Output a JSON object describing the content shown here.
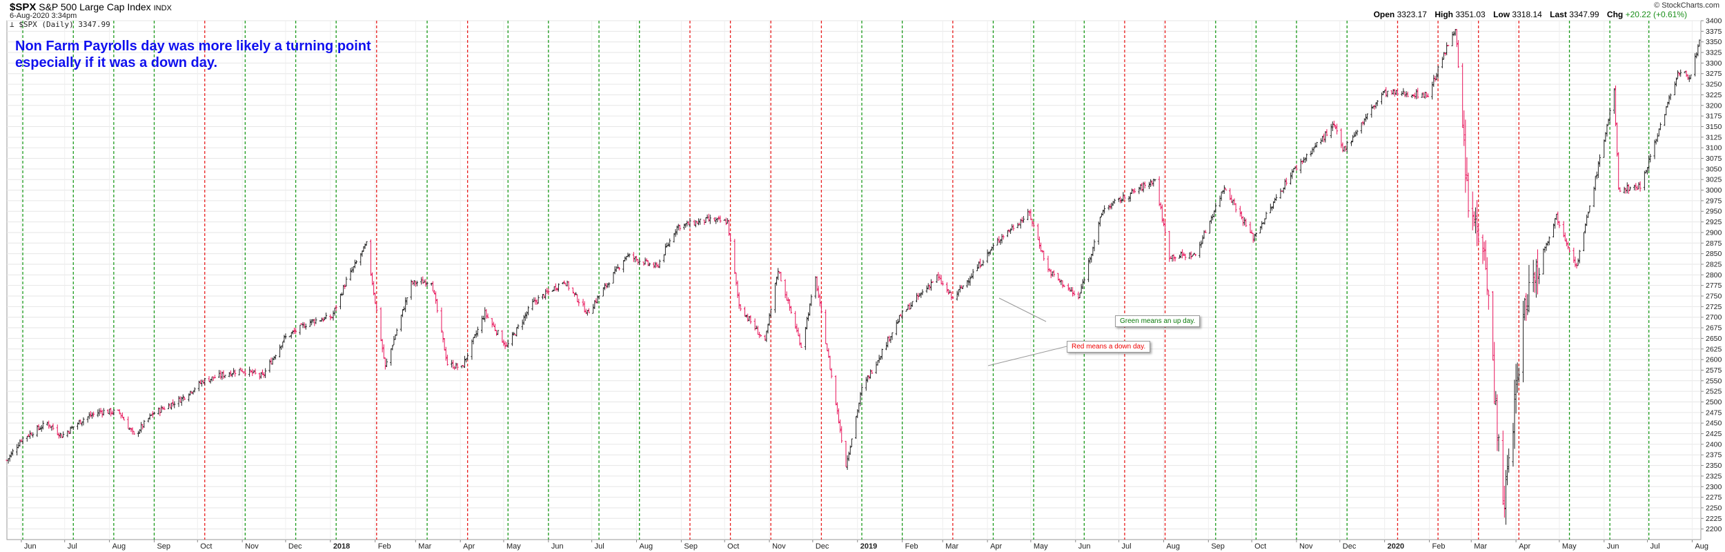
{
  "header": {
    "symbol": "$SPX",
    "name": "S&P 500 Large Cap Index",
    "exchange": "INDX",
    "datetime": "6-Aug-2020 3:34pm",
    "legend": "$SPX (Daily) 3347.99",
    "open_label": "Open",
    "open": "3323.17",
    "high_label": "High",
    "high": "3351.03",
    "low_label": "Low",
    "low": "3318.14",
    "last_label": "Last",
    "last": "3347.99",
    "chg_label": "Chg",
    "chg": "+20.22 (+0.61%)",
    "brand": "© StockCharts.com"
  },
  "annotations": {
    "headline_line1": "Non Farm Payrolls day was more likely a turning point",
    "headline_line2": "especially if it was a down day.",
    "green_note": "Green means an up day.",
    "red_note": "Red means a down day."
  },
  "colors": {
    "up_line": "#1a9a1a",
    "down_line": "#e81c1c",
    "up_bar": "#222222",
    "down_bar": "#e8145a"
  },
  "chart_data": {
    "type": "bar",
    "subtype": "ohlc-price-chart",
    "series_name": "$SPX (Daily)",
    "ylim": [
      2175,
      3400
    ],
    "y_ticks": [
      2200,
      2225,
      2250,
      2275,
      2300,
      2325,
      2350,
      2375,
      2400,
      2425,
      2450,
      2475,
      2500,
      2525,
      2550,
      2575,
      2600,
      2625,
      2650,
      2675,
      2700,
      2725,
      2750,
      2775,
      2800,
      2825,
      2850,
      2875,
      2900,
      2925,
      2950,
      2975,
      3000,
      3025,
      3050,
      3075,
      3100,
      3125,
      3150,
      3175,
      3200,
      3225,
      3250,
      3275,
      3300,
      3325,
      3350,
      3375,
      3400
    ],
    "x_labels": [
      {
        "label": "Jun",
        "date": "2017-06-01",
        "bold": false
      },
      {
        "label": "Jul",
        "date": "2017-07-01",
        "bold": false
      },
      {
        "label": "Aug",
        "date": "2017-08-01",
        "bold": false
      },
      {
        "label": "Sep",
        "date": "2017-09-01",
        "bold": false
      },
      {
        "label": "Oct",
        "date": "2017-10-01",
        "bold": false
      },
      {
        "label": "Nov",
        "date": "2017-11-01",
        "bold": false
      },
      {
        "label": "Dec",
        "date": "2017-12-01",
        "bold": false
      },
      {
        "label": "2018",
        "date": "2018-01-01",
        "bold": true
      },
      {
        "label": "Feb",
        "date": "2018-02-01",
        "bold": false
      },
      {
        "label": "Mar",
        "date": "2018-03-01",
        "bold": false
      },
      {
        "label": "Apr",
        "date": "2018-04-01",
        "bold": false
      },
      {
        "label": "May",
        "date": "2018-05-01",
        "bold": false
      },
      {
        "label": "Jun",
        "date": "2018-06-01",
        "bold": false
      },
      {
        "label": "Jul",
        "date": "2018-07-01",
        "bold": false
      },
      {
        "label": "Aug",
        "date": "2018-08-01",
        "bold": false
      },
      {
        "label": "Sep",
        "date": "2018-09-01",
        "bold": false
      },
      {
        "label": "Oct",
        "date": "2018-10-01",
        "bold": false
      },
      {
        "label": "Nov",
        "date": "2018-11-01",
        "bold": false
      },
      {
        "label": "Dec",
        "date": "2018-12-01",
        "bold": false
      },
      {
        "label": "2019",
        "date": "2019-01-01",
        "bold": true
      },
      {
        "label": "Feb",
        "date": "2019-02-01",
        "bold": false
      },
      {
        "label": "Mar",
        "date": "2019-03-01",
        "bold": false
      },
      {
        "label": "Apr",
        "date": "2019-04-01",
        "bold": false
      },
      {
        "label": "May",
        "date": "2019-05-01",
        "bold": false
      },
      {
        "label": "Jun",
        "date": "2019-06-01",
        "bold": false
      },
      {
        "label": "Jul",
        "date": "2019-07-01",
        "bold": false
      },
      {
        "label": "Aug",
        "date": "2019-08-01",
        "bold": false
      },
      {
        "label": "Sep",
        "date": "2019-09-01",
        "bold": false
      },
      {
        "label": "Oct",
        "date": "2019-10-01",
        "bold": false
      },
      {
        "label": "Nov",
        "date": "2019-11-01",
        "bold": false
      },
      {
        "label": "Dec",
        "date": "2019-12-01",
        "bold": false
      },
      {
        "label": "2020",
        "date": "2020-01-01",
        "bold": true
      },
      {
        "label": "Feb",
        "date": "2020-02-01",
        "bold": false
      },
      {
        "label": "Mar",
        "date": "2020-03-01",
        "bold": false
      },
      {
        "label": "Apr",
        "date": "2020-04-01",
        "bold": false
      },
      {
        "label": "May",
        "date": "2020-05-01",
        "bold": false
      },
      {
        "label": "Jun",
        "date": "2020-06-01",
        "bold": false
      },
      {
        "label": "Jul",
        "date": "2020-07-01",
        "bold": false
      },
      {
        "label": "Aug",
        "date": "2020-08-01",
        "bold": false
      }
    ],
    "payroll_days": [
      {
        "date": "2017-06-02",
        "type": "up"
      },
      {
        "date": "2017-07-07",
        "type": "up"
      },
      {
        "date": "2017-08-04",
        "type": "up"
      },
      {
        "date": "2017-09-01",
        "type": "up"
      },
      {
        "date": "2017-10-06",
        "type": "down"
      },
      {
        "date": "2017-11-03",
        "type": "up"
      },
      {
        "date": "2017-12-08",
        "type": "up"
      },
      {
        "date": "2018-01-05",
        "type": "up"
      },
      {
        "date": "2018-02-02",
        "type": "down"
      },
      {
        "date": "2018-03-09",
        "type": "up"
      },
      {
        "date": "2018-04-06",
        "type": "down"
      },
      {
        "date": "2018-05-04",
        "type": "up"
      },
      {
        "date": "2018-06-01",
        "type": "up"
      },
      {
        "date": "2018-07-06",
        "type": "up"
      },
      {
        "date": "2018-08-03",
        "type": "up"
      },
      {
        "date": "2018-09-07",
        "type": "down"
      },
      {
        "date": "2018-10-05",
        "type": "down"
      },
      {
        "date": "2018-11-02",
        "type": "down"
      },
      {
        "date": "2018-12-07",
        "type": "down"
      },
      {
        "date": "2019-01-04",
        "type": "up"
      },
      {
        "date": "2019-02-01",
        "type": "up"
      },
      {
        "date": "2019-03-08",
        "type": "down"
      },
      {
        "date": "2019-04-05",
        "type": "up"
      },
      {
        "date": "2019-05-03",
        "type": "up"
      },
      {
        "date": "2019-06-07",
        "type": "up"
      },
      {
        "date": "2019-07-05",
        "type": "down"
      },
      {
        "date": "2019-08-02",
        "type": "down"
      },
      {
        "date": "2019-09-06",
        "type": "up"
      },
      {
        "date": "2019-10-04",
        "type": "up"
      },
      {
        "date": "2019-11-01",
        "type": "up"
      },
      {
        "date": "2019-12-06",
        "type": "up"
      },
      {
        "date": "2020-01-10",
        "type": "down"
      },
      {
        "date": "2020-02-07",
        "type": "down"
      },
      {
        "date": "2020-03-06",
        "type": "down"
      },
      {
        "date": "2020-04-03",
        "type": "down"
      },
      {
        "date": "2020-05-08",
        "type": "up"
      },
      {
        "date": "2020-06-05",
        "type": "up"
      },
      {
        "date": "2020-07-02",
        "type": "up"
      }
    ],
    "price_path": [
      [
        "2017-05-22",
        2362
      ],
      [
        "2017-06-01",
        2412
      ],
      [
        "2017-06-19",
        2450
      ],
      [
        "2017-06-29",
        2420
      ],
      [
        "2017-07-14",
        2460
      ],
      [
        "2017-07-26",
        2478
      ],
      [
        "2017-08-08",
        2475
      ],
      [
        "2017-08-18",
        2420
      ],
      [
        "2017-08-31",
        2472
      ],
      [
        "2017-09-20",
        2508
      ],
      [
        "2017-10-05",
        2550
      ],
      [
        "2017-10-31",
        2576
      ],
      [
        "2017-11-15",
        2560
      ],
      [
        "2017-11-30",
        2650
      ],
      [
        "2017-12-18",
        2690
      ],
      [
        "2018-01-02",
        2700
      ],
      [
        "2018-01-12",
        2786
      ],
      [
        "2018-01-26",
        2872
      ],
      [
        "2018-02-08",
        2581
      ],
      [
        "2018-02-26",
        2780
      ],
      [
        "2018-03-12",
        2786
      ],
      [
        "2018-03-23",
        2590
      ],
      [
        "2018-04-02",
        2580
      ],
      [
        "2018-04-18",
        2710
      ],
      [
        "2018-05-03",
        2630
      ],
      [
        "2018-05-21",
        2733
      ],
      [
        "2018-06-12",
        2786
      ],
      [
        "2018-06-28",
        2710
      ],
      [
        "2018-07-25",
        2846
      ],
      [
        "2018-08-15",
        2818
      ],
      [
        "2018-08-29",
        2914
      ],
      [
        "2018-09-20",
        2930
      ],
      [
        "2018-10-03",
        2925
      ],
      [
        "2018-10-11",
        2728
      ],
      [
        "2018-10-29",
        2641
      ],
      [
        "2018-11-07",
        2813
      ],
      [
        "2018-11-23",
        2632
      ],
      [
        "2018-12-03",
        2790
      ],
      [
        "2018-12-24",
        2351
      ],
      [
        "2019-01-04",
        2530
      ],
      [
        "2019-01-31",
        2704
      ],
      [
        "2019-02-25",
        2796
      ],
      [
        "2019-03-08",
        2743
      ],
      [
        "2019-04-10",
        2888
      ],
      [
        "2019-04-30",
        2945
      ],
      [
        "2019-05-13",
        2811
      ],
      [
        "2019-06-03",
        2744
      ],
      [
        "2019-06-20",
        2954
      ],
      [
        "2019-07-26",
        3025
      ],
      [
        "2019-08-05",
        2844
      ],
      [
        "2019-08-23",
        2847
      ],
      [
        "2019-09-12",
        3009
      ],
      [
        "2019-10-02",
        2887
      ],
      [
        "2019-10-28",
        3039
      ],
      [
        "2019-11-27",
        3153
      ],
      [
        "2019-12-03",
        3093
      ],
      [
        "2019-12-31",
        3230
      ],
      [
        "2020-01-31",
        3225
      ],
      [
        "2020-02-19",
        3386
      ],
      [
        "2020-02-28",
        2954
      ],
      [
        "2020-03-10",
        2882
      ],
      [
        "2020-03-23",
        2237
      ],
      [
        "2020-04-08",
        2749
      ],
      [
        "2020-04-29",
        2939
      ],
      [
        "2020-05-13",
        2820
      ],
      [
        "2020-06-08",
        3232
      ],
      [
        "2020-06-11",
        3002
      ],
      [
        "2020-06-26",
        3009
      ],
      [
        "2020-07-22",
        3276
      ],
      [
        "2020-07-31",
        3271
      ],
      [
        "2020-08-06",
        3348
      ]
    ]
  }
}
